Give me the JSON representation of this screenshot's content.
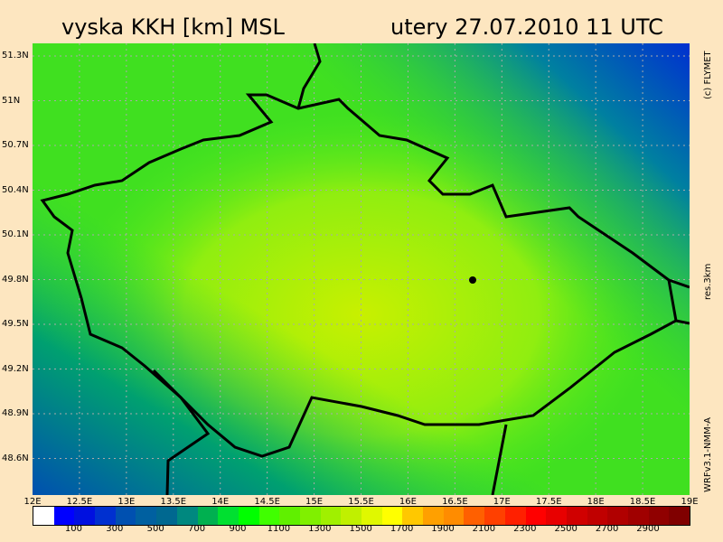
{
  "title_left": "vyska KKH [km] MSL",
  "title_right": "utery 27.07.2010 11 UTC",
  "copyright": "(c) FLYMET",
  "resolution": "res.3km",
  "model": "WRFv3.1-NMM-A",
  "lat_labels": [
    "51.3N",
    "51N",
    "50.7N",
    "50.4N",
    "50.1N",
    "49.8N",
    "49.5N",
    "49.2N",
    "48.9N",
    "48.6N"
  ],
  "lon_labels": [
    "12E",
    "12.5E",
    "13E",
    "13.5E",
    "14E",
    "14.5E",
    "15E",
    "15.5E",
    "16E",
    "16.5E",
    "17E",
    "17.5E",
    "18E",
    "18.5E",
    "19E"
  ],
  "colorbar": {
    "labels": [
      "100",
      "300",
      "500",
      "700",
      "900",
      "1100",
      "1300",
      "1500",
      "1700",
      "1900",
      "2100",
      "2300",
      "2500",
      "2700",
      "2900"
    ],
    "colors": [
      "#ffffff",
      "#0000ff",
      "#0010e0",
      "#0030d0",
      "#0050b0",
      "#0060a0",
      "#006890",
      "#00887f",
      "#00b050",
      "#00e030",
      "#00ff00",
      "#40ff00",
      "#60f000",
      "#80f000",
      "#a0f000",
      "#c0f000",
      "#e0f800",
      "#ffff00",
      "#ffc800",
      "#ffa000",
      "#ff8c00",
      "#ff6000",
      "#ff4000",
      "#ff2000",
      "#ff0000",
      "#e80000",
      "#d00000",
      "#c00000",
      "#b00000",
      "#a00000",
      "#900000",
      "#800000"
    ]
  }
}
